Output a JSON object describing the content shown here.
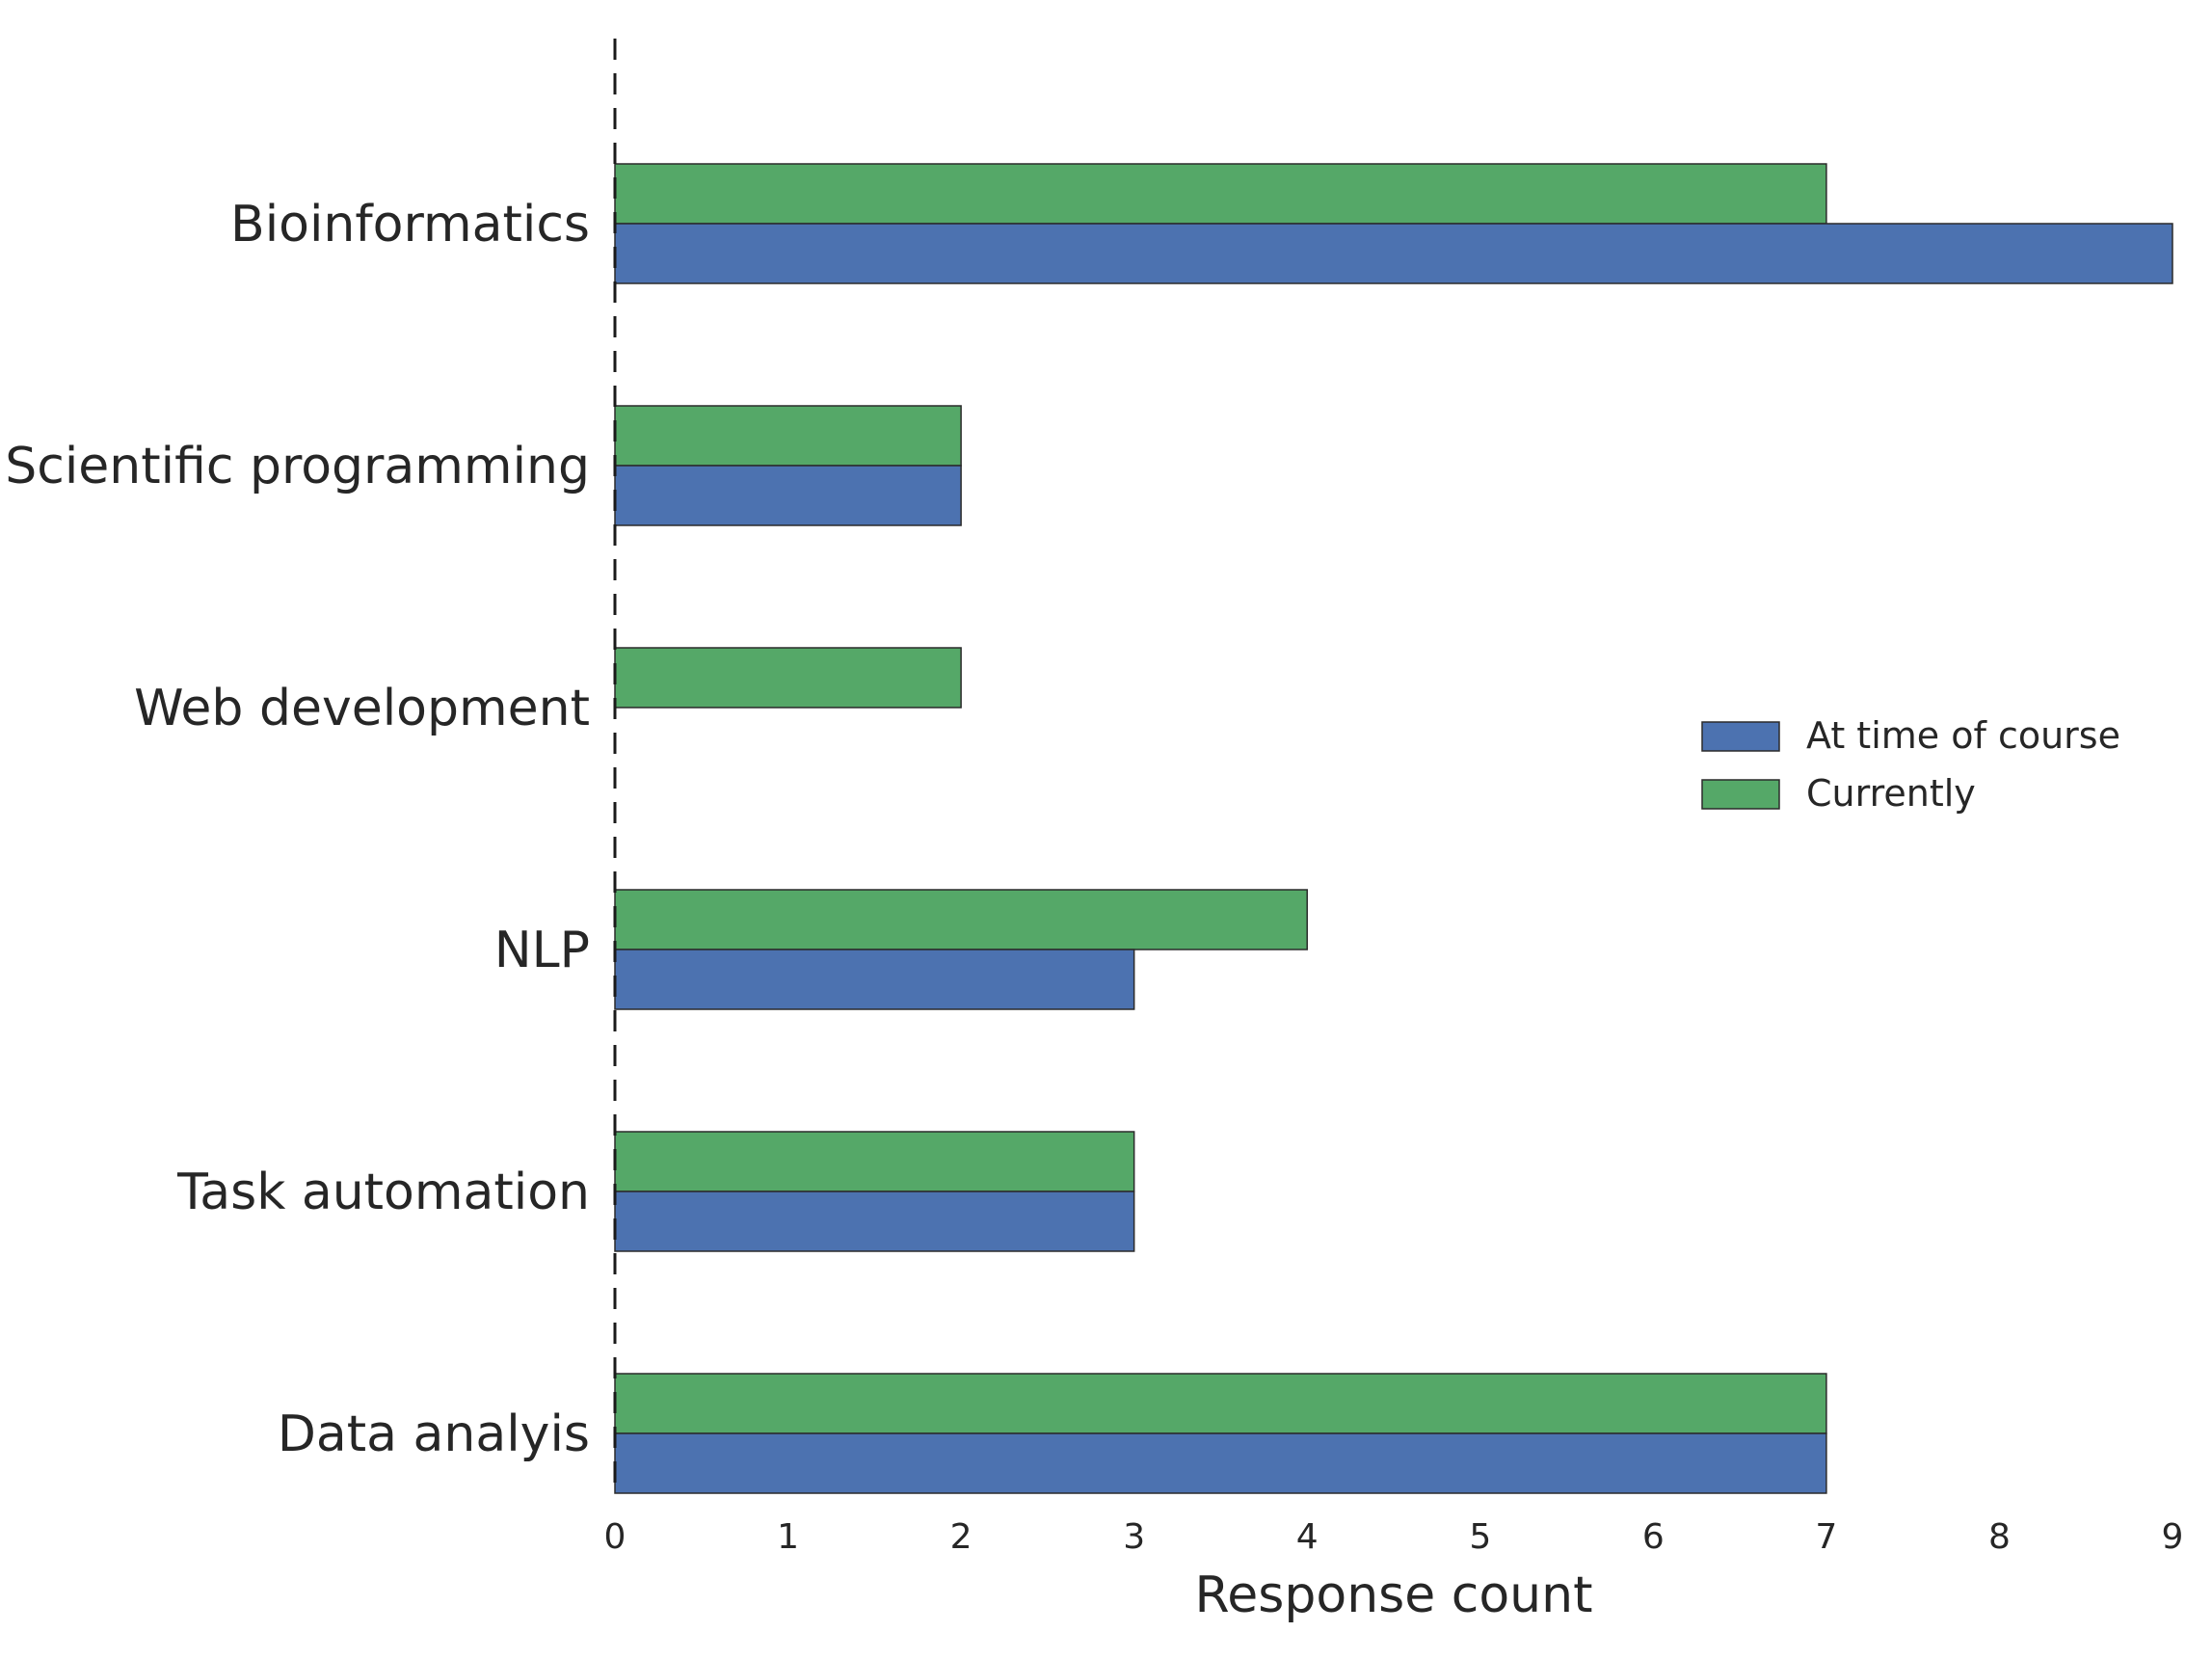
{
  "chart_data": {
    "type": "bar",
    "orientation": "horizontal",
    "categories": [
      "Bioinformatics",
      "Scientific programming",
      "Web development",
      "NLP",
      "Task automation",
      "Data analyis"
    ],
    "series": [
      {
        "name": "At time of course",
        "color": "#4c72b0",
        "values": [
          9,
          2,
          0,
          3,
          3,
          7
        ]
      },
      {
        "name": "Currently",
        "color": "#55a868",
        "values": [
          7,
          2,
          2,
          4,
          3,
          7
        ]
      }
    ],
    "x_ticks": [
      "0",
      "1",
      "2",
      "3",
      "4",
      "5",
      "6",
      "7",
      "8",
      "9"
    ],
    "xlim": [
      0,
      9
    ],
    "xlabel": "Response count",
    "ylabel": "",
    "title": "",
    "grid": false,
    "zero_line": "dashed",
    "legend_position": "right"
  }
}
